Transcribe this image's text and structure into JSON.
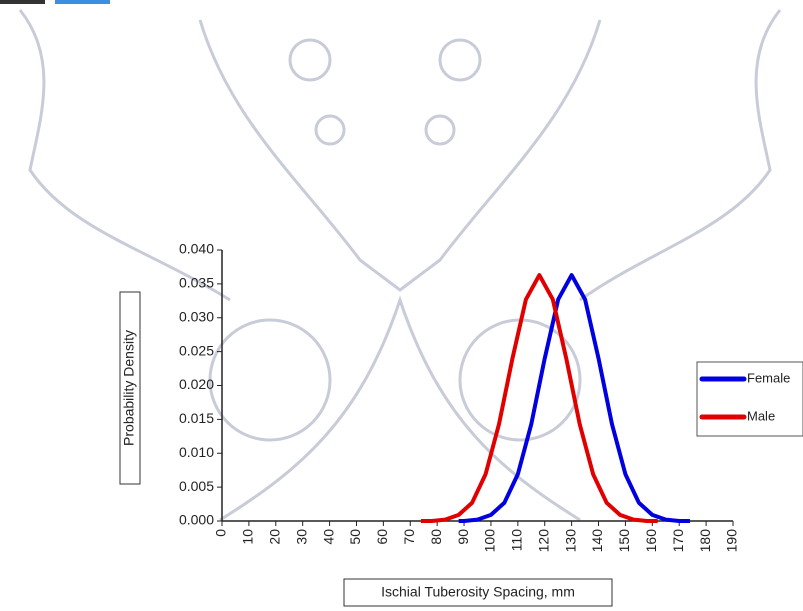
{
  "chart_data": {
    "type": "line",
    "x_label": "Ischial Tuberosity Spacing, mm",
    "y_label": "Probability Density",
    "xlim": [
      0,
      190
    ],
    "xticks": [
      0,
      10,
      20,
      30,
      40,
      50,
      60,
      70,
      80,
      90,
      100,
      110,
      120,
      130,
      140,
      150,
      160,
      170,
      180,
      190
    ],
    "ylim": [
      0,
      0.04
    ],
    "yticks": [
      {
        "value": 0,
        "label": "0.000"
      },
      {
        "value": 0.005,
        "label": "0.005"
      },
      {
        "value": 0.01,
        "label": "0.010"
      },
      {
        "value": 0.015,
        "label": "0.015"
      },
      {
        "value": 0.02,
        "label": "0.020"
      },
      {
        "value": 0.025,
        "label": "0.025"
      },
      {
        "value": 0.03,
        "label": "0.030"
      },
      {
        "value": 0.035,
        "label": "0.035"
      },
      {
        "value": 0.04,
        "label": "0.040"
      }
    ],
    "legend": "right",
    "series": [
      {
        "name": "Female",
        "color": "#0000e0",
        "x": [
          88,
          90,
          95,
          100,
          105,
          110,
          115,
          120,
          125,
          130,
          135,
          140,
          145,
          150,
          155,
          160,
          165,
          170,
          174
        ],
        "values": [
          0.0,
          0.0,
          0.0002,
          0.0009,
          0.0027,
          0.0069,
          0.0143,
          0.024,
          0.0327,
          0.0363,
          0.0327,
          0.024,
          0.0143,
          0.0069,
          0.0027,
          0.0009,
          0.0002,
          0.0,
          0.0
        ]
      },
      {
        "name": "Male",
        "color": "#e00000",
        "x": [
          74,
          78,
          83,
          88,
          93,
          98,
          103,
          108,
          113,
          118,
          123,
          128,
          133,
          138,
          143,
          148,
          153,
          158,
          162
        ],
        "values": [
          0.0,
          0.0,
          0.0002,
          0.0009,
          0.0027,
          0.0069,
          0.0143,
          0.024,
          0.0327,
          0.0363,
          0.0327,
          0.024,
          0.0143,
          0.0069,
          0.0027,
          0.0009,
          0.0002,
          0.0,
          0.0
        ]
      }
    ]
  }
}
